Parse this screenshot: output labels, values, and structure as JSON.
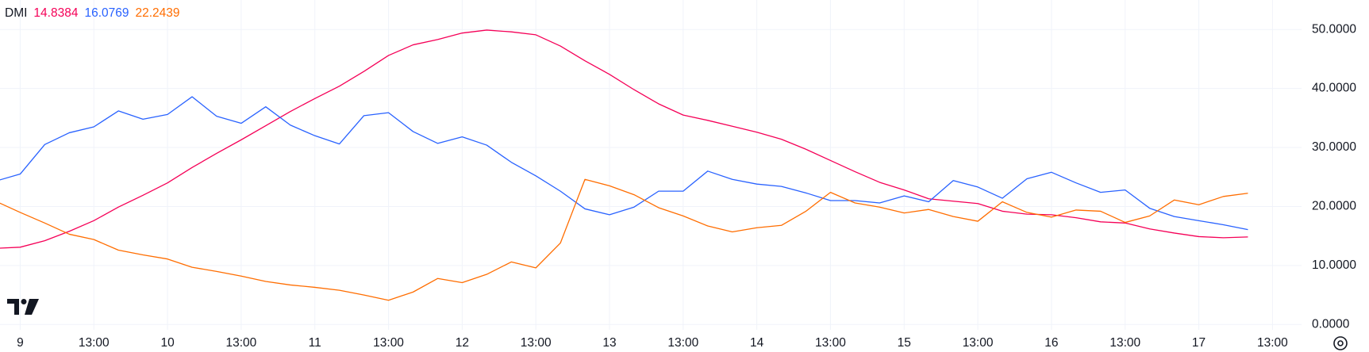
{
  "chart_data": {
    "type": "line",
    "title": "DMI",
    "categories": [
      null,
      "9",
      null,
      null,
      "13:00",
      null,
      null,
      "10",
      null,
      null,
      "13:00",
      null,
      null,
      "11",
      null,
      null,
      "13:00",
      null,
      null,
      "12",
      null,
      null,
      "13:00",
      null,
      null,
      "13",
      null,
      null,
      "13:00",
      null,
      null,
      "14",
      null,
      null,
      "13:00",
      null,
      null,
      "15",
      null,
      null,
      "13:00",
      null,
      null,
      "16",
      null,
      null,
      "13:00",
      null,
      null,
      "17",
      null,
      null,
      "13:00"
    ],
    "series": [
      {
        "color": "#f50057",
        "values": [
          12.9,
          13.1,
          14.2,
          15.8,
          17.6,
          19.9,
          21.9,
          24.0,
          26.6,
          29.0,
          31.3,
          33.7,
          36.1,
          38.3,
          40.4,
          42.9,
          45.6,
          47.4,
          48.3,
          49.4,
          49.9,
          49.6,
          49.1,
          47.2,
          44.7,
          42.4,
          39.8,
          37.4,
          35.5,
          34.6,
          33.6,
          32.6,
          31.4,
          29.7,
          27.8,
          25.9,
          24.1,
          22.8,
          21.3,
          20.9,
          20.5,
          19.2,
          18.7,
          18.6,
          18.1,
          17.4,
          17.2,
          16.2,
          15.5,
          14.9,
          14.7,
          14.8384,
          null
        ]
      },
      {
        "color": "#2962ff",
        "values": [
          24.3,
          25.5,
          30.5,
          32.5,
          33.5,
          36.2,
          34.8,
          35.6,
          38.6,
          35.3,
          34.1,
          36.9,
          33.8,
          32.0,
          30.6,
          35.4,
          35.9,
          32.7,
          30.7,
          31.8,
          30.4,
          27.5,
          25.2,
          22.6,
          19.6,
          18.6,
          19.9,
          22.6,
          22.6,
          26.0,
          24.6,
          23.8,
          23.4,
          22.3,
          21.0,
          21.0,
          20.6,
          21.8,
          20.8,
          24.4,
          23.3,
          21.4,
          24.7,
          25.8,
          24.0,
          22.4,
          22.8,
          19.7,
          18.3,
          17.6,
          16.9,
          16.0769,
          null
        ]
      },
      {
        "color": "#ff6d00",
        "values": [
          20.9,
          19.0,
          17.2,
          15.3,
          14.4,
          12.6,
          11.8,
          11.1,
          9.7,
          9.0,
          8.2,
          7.3,
          6.7,
          6.3,
          5.8,
          5.0,
          4.1,
          5.5,
          7.8,
          7.1,
          8.5,
          10.6,
          9.6,
          13.8,
          24.6,
          23.5,
          22.0,
          19.8,
          18.4,
          16.7,
          15.7,
          16.4,
          16.8,
          19.2,
          22.4,
          20.6,
          19.9,
          18.9,
          19.5,
          18.3,
          17.5,
          20.8,
          19.0,
          18.2,
          19.4,
          19.2,
          17.3,
          18.4,
          21.1,
          20.3,
          21.7,
          22.2439,
          null
        ]
      }
    ],
    "ylim": [
      -0.9,
      55
    ],
    "yticks": [
      {
        "value": 0,
        "label": "0.0000"
      },
      {
        "value": 10,
        "label": "10.0000"
      },
      {
        "value": 20,
        "label": "20.0000"
      },
      {
        "value": 30,
        "label": "30.0000"
      },
      {
        "value": 40,
        "label": "40.0000"
      },
      {
        "value": 50,
        "label": "50.0000"
      }
    ],
    "grid": true
  }
}
